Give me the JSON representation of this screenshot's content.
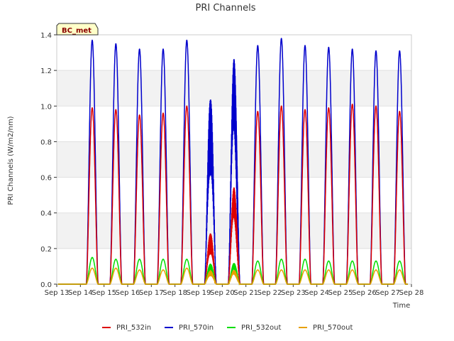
{
  "chart_data": {
    "type": "line",
    "title": "PRI Channels",
    "xlabel": "Time",
    "ylabel": "PRI Channels (W/m2/nm)",
    "badge": "BC_met",
    "x_tick_labels": [
      "Sep 13",
      "Sep 14",
      "Sep 15",
      "Sep 16",
      "Sep 17",
      "Sep 18",
      "Sep 19",
      "Sep 20",
      "Sep 21",
      "Sep 22",
      "Sep 23",
      "Sep 24",
      "Sep 25",
      "Sep 26",
      "Sep 27",
      "Sep 28"
    ],
    "y_tick_labels": [
      "0.0",
      "0.2",
      "0.4",
      "0.6",
      "0.8",
      "1.0",
      "1.2",
      "1.4"
    ],
    "ylim": [
      0,
      1.4
    ],
    "xlim_days": [
      13,
      28
    ],
    "grid": "horizontal bands",
    "legend_position": "bottom",
    "day_peaks": [
      {
        "day": "Sep 14",
        "PRI_532in": 0.99,
        "PRI_570in": 1.37,
        "PRI_532out": 0.15,
        "PRI_570out": 0.09
      },
      {
        "day": "Sep 15",
        "PRI_532in": 0.98,
        "PRI_570in": 1.35,
        "PRI_532out": 0.14,
        "PRI_570out": 0.09
      },
      {
        "day": "Sep 16",
        "PRI_532in": 0.95,
        "PRI_570in": 1.32,
        "PRI_532out": 0.14,
        "PRI_570out": 0.08
      },
      {
        "day": "Sep 17",
        "PRI_532in": 0.96,
        "PRI_570in": 1.32,
        "PRI_532out": 0.14,
        "PRI_570out": 0.08
      },
      {
        "day": "Sep 18",
        "PRI_532in": 1.0,
        "PRI_570in": 1.37,
        "PRI_532out": 0.14,
        "PRI_570out": 0.09
      },
      {
        "day": "Sep 19",
        "PRI_532in": 0.3,
        "PRI_570in": 1.1,
        "PRI_532out": 0.12,
        "PRI_570out": 0.08
      },
      {
        "day": "Sep 20",
        "PRI_532in": 0.55,
        "PRI_570in": 1.28,
        "PRI_532out": 0.12,
        "PRI_570out": 0.08
      },
      {
        "day": "Sep 21",
        "PRI_532in": 0.97,
        "PRI_570in": 1.34,
        "PRI_532out": 0.13,
        "PRI_570out": 0.08
      },
      {
        "day": "Sep 22",
        "PRI_532in": 1.0,
        "PRI_570in": 1.38,
        "PRI_532out": 0.14,
        "PRI_570out": 0.08
      },
      {
        "day": "Sep 23",
        "PRI_532in": 0.98,
        "PRI_570in": 1.34,
        "PRI_532out": 0.14,
        "PRI_570out": 0.08
      },
      {
        "day": "Sep 24",
        "PRI_532in": 0.99,
        "PRI_570in": 1.33,
        "PRI_532out": 0.13,
        "PRI_570out": 0.08
      },
      {
        "day": "Sep 25",
        "PRI_532in": 1.01,
        "PRI_570in": 1.32,
        "PRI_532out": 0.13,
        "PRI_570out": 0.08
      },
      {
        "day": "Sep 26",
        "PRI_532in": 1.0,
        "PRI_570in": 1.31,
        "PRI_532out": 0.13,
        "PRI_570out": 0.08
      },
      {
        "day": "Sep 27",
        "PRI_532in": 0.97,
        "PRI_570in": 1.31,
        "PRI_532out": 0.13,
        "PRI_570out": 0.08
      }
    ],
    "series": [
      {
        "name": "PRI_532in",
        "color": "#dd0000"
      },
      {
        "name": "PRI_570in",
        "color": "#0000cc"
      },
      {
        "name": "PRI_532out",
        "color": "#00dd00"
      },
      {
        "name": "PRI_570out",
        "color": "#e8a000"
      }
    ]
  }
}
